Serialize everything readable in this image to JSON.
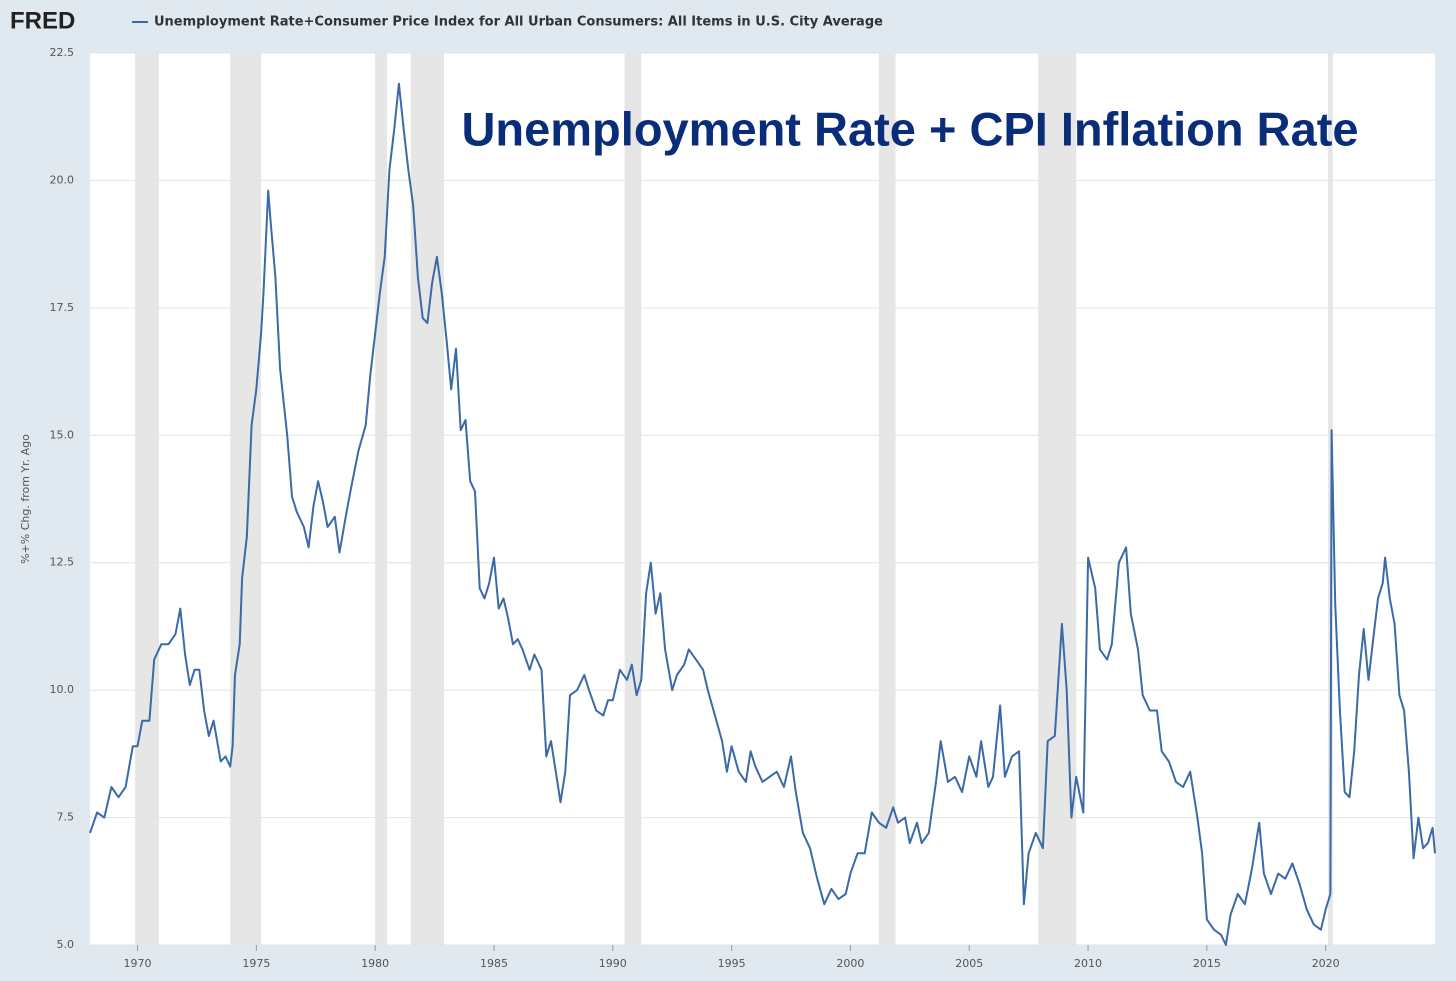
{
  "logo": "FRED",
  "chart_data": {
    "type": "line",
    "annotation": "Unemployment Rate + CPI Inflation Rate",
    "ylabel": "%+% Chg. from Yr. Ago",
    "xlim": [
      1968,
      2024.6
    ],
    "xticks": [
      1970,
      1975,
      1980,
      1985,
      1990,
      1995,
      2000,
      2005,
      2010,
      2015,
      2020
    ],
    "ylim": [
      5,
      22.5
    ],
    "yticks": [
      {
        "value": 5,
        "label": "5.0"
      },
      7.5,
      {
        "value": 10,
        "label": "10.0"
      },
      12.5,
      {
        "value": 15,
        "label": "15.0"
      },
      17.5,
      {
        "value": 20,
        "label": "20.0"
      },
      22.5
    ],
    "grid": true,
    "recessions": [
      [
        1969.9,
        1970.9
      ],
      [
        1973.9,
        1975.2
      ],
      [
        1980.0,
        1980.5
      ],
      [
        1981.5,
        1982.9
      ],
      [
        1990.5,
        1991.2
      ],
      [
        2001.2,
        2001.9
      ],
      [
        2007.9,
        2009.5
      ],
      [
        2020.1,
        2020.3
      ]
    ],
    "x": [
      1968.0,
      1968.3,
      1968.6,
      1968.9,
      1969.2,
      1969.5,
      1969.8,
      1970.0,
      1970.2,
      1970.5,
      1970.7,
      1971.0,
      1971.3,
      1971.6,
      1971.8,
      1972.0,
      1972.2,
      1972.4,
      1972.6,
      1972.8,
      1973.0,
      1973.2,
      1973.5,
      1973.7,
      1973.9,
      1974.0,
      1974.1,
      1974.3,
      1974.4,
      1974.6,
      1974.8,
      1975.0,
      1975.2,
      1975.3,
      1975.5,
      1975.6,
      1975.8,
      1976.0,
      1976.3,
      1976.5,
      1976.7,
      1977.0,
      1977.2,
      1977.4,
      1977.6,
      1977.8,
      1978.0,
      1978.3,
      1978.5,
      1978.8,
      1979.0,
      1979.3,
      1979.6,
      1979.8,
      1980.0,
      1980.2,
      1980.4,
      1980.6,
      1980.8,
      1981.0,
      1981.2,
      1981.4,
      1981.6,
      1981.8,
      1982.0,
      1982.2,
      1982.4,
      1982.6,
      1982.8,
      1983.0,
      1983.2,
      1983.4,
      1983.6,
      1983.8,
      1984.0,
      1984.2,
      1984.4,
      1984.6,
      1984.8,
      1985.0,
      1985.2,
      1985.4,
      1985.6,
      1985.8,
      1986.0,
      1986.2,
      1986.5,
      1986.7,
      1987.0,
      1987.2,
      1987.4,
      1987.6,
      1987.8,
      1988.0,
      1988.2,
      1988.5,
      1988.8,
      1989.0,
      1989.3,
      1989.6,
      1989.8,
      1990.0,
      1990.3,
      1990.6,
      1990.8,
      1991.0,
      1991.2,
      1991.4,
      1991.6,
      1991.8,
      1992.0,
      1992.2,
      1992.5,
      1992.7,
      1993.0,
      1993.2,
      1993.5,
      1993.8,
      1994.0,
      1994.3,
      1994.6,
      1994.8,
      1995.0,
      1995.3,
      1995.6,
      1995.8,
      1996.0,
      1996.3,
      1996.6,
      1996.9,
      1997.2,
      1997.5,
      1997.7,
      1998.0,
      1998.3,
      1998.6,
      1998.9,
      1999.2,
      1999.5,
      1999.8,
      2000.0,
      2000.3,
      2000.6,
      2000.9,
      2001.2,
      2001.5,
      2001.8,
      2002.0,
      2002.3,
      2002.5,
      2002.8,
      2003.0,
      2003.3,
      2003.6,
      2003.8,
      2004.1,
      2004.4,
      2004.7,
      2005.0,
      2005.3,
      2005.5,
      2005.8,
      2006.0,
      2006.3,
      2006.5,
      2006.8,
      2007.1,
      2007.3,
      2007.5,
      2007.8,
      2008.1,
      2008.3,
      2008.6,
      2008.9,
      2009.1,
      2009.3,
      2009.5,
      2009.8,
      2010.0,
      2010.3,
      2010.5,
      2010.8,
      2011.0,
      2011.3,
      2011.6,
      2011.8,
      2012.1,
      2012.3,
      2012.6,
      2012.9,
      2013.1,
      2013.4,
      2013.7,
      2014.0,
      2014.3,
      2014.6,
      2014.8,
      2015.0,
      2015.3,
      2015.6,
      2015.8,
      2016.0,
      2016.3,
      2016.6,
      2016.9,
      2017.2,
      2017.4,
      2017.7,
      2018.0,
      2018.3,
      2018.6,
      2018.9,
      2019.2,
      2019.5,
      2019.8,
      2020.0,
      2020.2,
      2020.25,
      2020.4,
      2020.6,
      2020.8,
      2021.0,
      2021.2,
      2021.4,
      2021.6,
      2021.8,
      2022.0,
      2022.2,
      2022.4,
      2022.5,
      2022.7,
      2022.9,
      2023.1,
      2023.3,
      2023.5,
      2023.7,
      2023.9,
      2024.1,
      2024.3,
      2024.5,
      2024.6
    ],
    "series": [
      {
        "name": "Unemployment Rate+Consumer Price Index for All Urban Consumers: All Items in U.S. City Average",
        "color": "#3b6aa6",
        "values": [
          7.2,
          7.6,
          7.5,
          8.1,
          7.9,
          8.1,
          8.9,
          8.9,
          9.4,
          9.4,
          10.6,
          10.9,
          10.9,
          11.1,
          11.6,
          10.7,
          10.1,
          10.4,
          10.4,
          9.6,
          9.1,
          9.4,
          8.6,
          8.7,
          8.5,
          8.9,
          10.3,
          10.9,
          12.2,
          13.0,
          15.2,
          15.9,
          17.0,
          17.8,
          19.8,
          19.2,
          18.1,
          16.3,
          15.0,
          13.8,
          13.5,
          13.2,
          12.8,
          13.6,
          14.1,
          13.7,
          13.2,
          13.4,
          12.7,
          13.5,
          14.0,
          14.7,
          15.2,
          16.2,
          17.0,
          17.8,
          18.5,
          20.2,
          21.0,
          21.9,
          21.0,
          20.2,
          19.5,
          18.1,
          17.3,
          17.2,
          18.0,
          18.5,
          17.8,
          16.9,
          15.9,
          16.7,
          15.1,
          15.3,
          14.1,
          13.9,
          12.0,
          11.8,
          12.1,
          12.6,
          11.6,
          11.8,
          11.4,
          10.9,
          11.0,
          10.8,
          10.4,
          10.7,
          10.4,
          8.7,
          9.0,
          8.4,
          7.8,
          8.4,
          9.9,
          10.0,
          10.3,
          10.0,
          9.6,
          9.5,
          9.8,
          9.8,
          10.4,
          10.2,
          10.5,
          9.9,
          10.2,
          11.9,
          12.5,
          11.5,
          11.9,
          10.8,
          10.0,
          10.3,
          10.5,
          10.8,
          10.6,
          10.4,
          10.0,
          9.5,
          9.0,
          8.4,
          8.9,
          8.4,
          8.2,
          8.8,
          8.5,
          8.2,
          8.3,
          8.4,
          8.1,
          8.7,
          8.0,
          7.2,
          6.9,
          6.3,
          5.8,
          6.1,
          5.9,
          6.0,
          6.4,
          6.8,
          6.8,
          7.6,
          7.4,
          7.3,
          7.7,
          7.4,
          7.5,
          7.0,
          7.4,
          7.0,
          7.2,
          8.2,
          9.0,
          8.2,
          8.3,
          8.0,
          8.7,
          8.3,
          9.0,
          8.1,
          8.3,
          9.7,
          8.3,
          8.7,
          8.8,
          5.8,
          6.8,
          7.2,
          6.9,
          9.0,
          9.1,
          11.3,
          10.0,
          7.5,
          8.3,
          7.6,
          12.6,
          12.0,
          10.8,
          10.6,
          10.9,
          12.5,
          12.8,
          11.5,
          10.8,
          9.9,
          9.6,
          9.6,
          8.8,
          8.6,
          8.2,
          8.1,
          8.4,
          7.5,
          6.8,
          5.5,
          5.3,
          5.2,
          5.0,
          5.6,
          6.0,
          5.8,
          6.5,
          7.4,
          6.4,
          6.0,
          6.4,
          6.3,
          6.6,
          6.2,
          5.7,
          5.4,
          5.3,
          5.7,
          6.0,
          15.1,
          11.7,
          9.6,
          8.0,
          7.9,
          8.8,
          10.3,
          11.2,
          10.2,
          11.0,
          11.8,
          12.1,
          12.6,
          11.8,
          11.3,
          9.9,
          9.6,
          8.4,
          6.7,
          7.5,
          6.9,
          7.0,
          7.3,
          6.8
        ]
      }
    ]
  }
}
